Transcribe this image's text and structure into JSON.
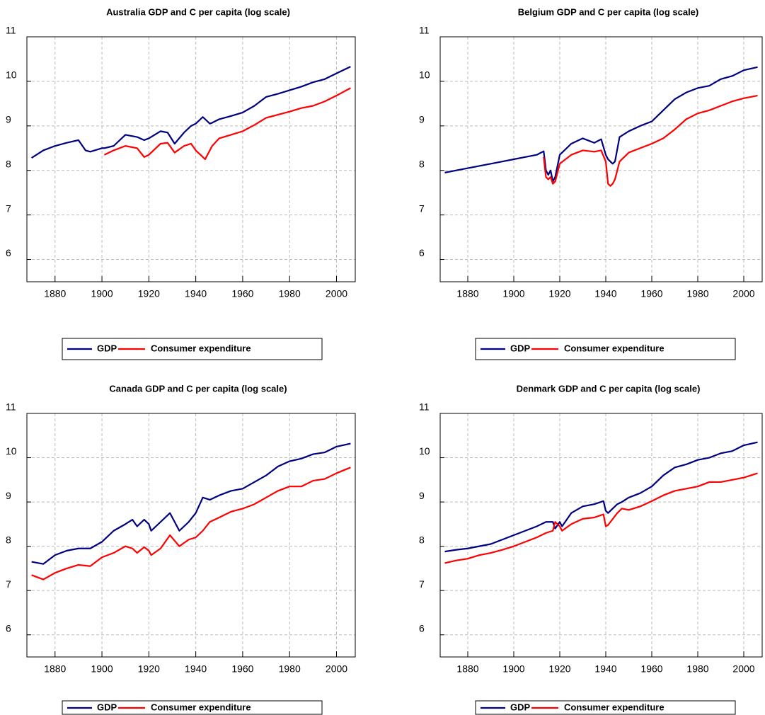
{
  "chart_data": [
    {
      "type": "line",
      "title": "Australia GDP and C per capita (log scale)",
      "x": [
        1870,
        1875,
        1880,
        1885,
        1890,
        1893,
        1895,
        1900,
        1901,
        1905,
        1910,
        1915,
        1918,
        1920,
        1925,
        1928,
        1931,
        1935,
        1938,
        1940,
        1943,
        1944,
        1946,
        1947,
        1950,
        1955,
        1960,
        1965,
        1970,
        1975,
        1980,
        1985,
        1990,
        1995,
        2000,
        2006
      ],
      "series": [
        {
          "name": "GDP",
          "color": "#000080",
          "values": [
            8.28,
            8.45,
            8.55,
            8.62,
            8.68,
            8.45,
            8.42,
            8.5,
            8.5,
            8.55,
            8.8,
            8.75,
            8.68,
            8.72,
            8.88,
            8.85,
            8.6,
            8.85,
            9.0,
            9.05,
            9.2,
            9.15,
            9.05,
            9.07,
            9.15,
            9.22,
            9.3,
            9.45,
            9.65,
            9.72,
            9.8,
            9.88,
            9.98,
            10.05,
            10.18,
            10.33
          ]
        },
        {
          "name": "Consumer expenditure",
          "color": "#ff0000",
          "values": [
            null,
            null,
            null,
            null,
            null,
            null,
            null,
            null,
            8.35,
            8.45,
            8.55,
            8.5,
            8.3,
            8.35,
            8.6,
            8.62,
            8.4,
            8.55,
            8.6,
            8.45,
            8.3,
            8.25,
            8.45,
            8.55,
            8.72,
            8.8,
            8.88,
            9.02,
            9.18,
            9.25,
            9.32,
            9.4,
            9.45,
            9.55,
            9.68,
            9.85
          ]
        }
      ],
      "xlim": [
        1868,
        2008
      ],
      "xticks": [
        1880,
        1900,
        1920,
        1940,
        1960,
        1980,
        2000
      ],
      "ylim": [
        5.5,
        11
      ],
      "yticks": [
        6,
        7,
        8,
        9,
        10,
        11
      ],
      "grid": true
    },
    {
      "type": "line",
      "title": "Belgium GDP and C per capita (log scale)",
      "x": [
        1870,
        1875,
        1880,
        1885,
        1890,
        1895,
        1900,
        1905,
        1910,
        1913,
        1914,
        1915,
        1916,
        1917,
        1918,
        1920,
        1925,
        1930,
        1935,
        1938,
        1940,
        1941,
        1942,
        1943,
        1944,
        1946,
        1950,
        1955,
        1960,
        1965,
        1970,
        1975,
        1980,
        1985,
        1990,
        1995,
        2000,
        2006
      ],
      "series": [
        {
          "name": "GDP",
          "color": "#000080",
          "values": [
            7.95,
            8.0,
            8.05,
            8.1,
            8.15,
            8.2,
            8.25,
            8.3,
            8.35,
            8.43,
            8.0,
            7.9,
            8.0,
            7.75,
            7.85,
            8.35,
            8.6,
            8.72,
            8.62,
            8.7,
            8.35,
            8.25,
            8.2,
            8.15,
            8.2,
            8.75,
            8.88,
            9.0,
            9.1,
            9.35,
            9.6,
            9.75,
            9.85,
            9.9,
            10.05,
            10.12,
            10.25,
            10.32
          ]
        },
        {
          "name": "Consumer expenditure",
          "color": "#ff0000",
          "values": [
            null,
            null,
            null,
            null,
            null,
            null,
            null,
            null,
            null,
            8.3,
            7.85,
            7.8,
            7.85,
            7.7,
            7.75,
            8.15,
            8.35,
            8.45,
            8.42,
            8.45,
            8.2,
            7.7,
            7.65,
            7.7,
            7.8,
            8.2,
            8.4,
            8.5,
            8.6,
            8.72,
            8.92,
            9.15,
            9.28,
            9.35,
            9.45,
            9.55,
            9.62,
            9.68
          ]
        }
      ],
      "xlim": [
        1868,
        2008
      ],
      "xticks": [
        1880,
        1900,
        1920,
        1940,
        1960,
        1980,
        2000
      ],
      "ylim": [
        5.5,
        11
      ],
      "yticks": [
        6,
        7,
        8,
        9,
        10,
        11
      ],
      "grid": true
    },
    {
      "type": "line",
      "title": "Canada GDP and C per capita (log scale)",
      "x": [
        1870,
        1875,
        1880,
        1885,
        1890,
        1895,
        1900,
        1905,
        1910,
        1913,
        1915,
        1918,
        1920,
        1921,
        1925,
        1929,
        1933,
        1937,
        1940,
        1943,
        1946,
        1950,
        1955,
        1960,
        1965,
        1970,
        1975,
        1980,
        1985,
        1990,
        1995,
        2000,
        2006
      ],
      "series": [
        {
          "name": "GDP",
          "color": "#000080",
          "values": [
            7.65,
            7.6,
            7.8,
            7.9,
            7.95,
            7.95,
            8.1,
            8.35,
            8.5,
            8.6,
            8.45,
            8.6,
            8.5,
            8.35,
            8.55,
            8.75,
            8.35,
            8.55,
            8.75,
            9.1,
            9.05,
            9.15,
            9.25,
            9.3,
            9.45,
            9.6,
            9.8,
            9.92,
            9.98,
            10.08,
            10.12,
            10.25,
            10.32
          ]
        },
        {
          "name": "Consumer expenditure",
          "color": "#ff0000",
          "values": [
            7.35,
            7.25,
            7.4,
            7.5,
            7.58,
            7.55,
            7.75,
            7.85,
            8.0,
            7.95,
            7.85,
            7.98,
            7.9,
            7.8,
            7.95,
            8.25,
            8.0,
            8.15,
            8.2,
            8.35,
            8.55,
            8.65,
            8.78,
            8.85,
            8.95,
            9.1,
            9.25,
            9.35,
            9.35,
            9.48,
            9.52,
            9.65,
            9.78
          ]
        }
      ],
      "xlim": [
        1868,
        2008
      ],
      "xticks": [
        1880,
        1900,
        1920,
        1940,
        1960,
        1980,
        2000
      ],
      "ylim": [
        5.5,
        11
      ],
      "yticks": [
        6,
        7,
        8,
        9,
        10,
        11
      ],
      "grid": true
    },
    {
      "type": "line",
      "title": "Denmark GDP and C per capita (log scale)",
      "x": [
        1870,
        1875,
        1880,
        1885,
        1890,
        1895,
        1900,
        1905,
        1910,
        1914,
        1917,
        1918,
        1920,
        1921,
        1925,
        1930,
        1935,
        1939,
        1940,
        1941,
        1945,
        1947,
        1950,
        1955,
        1960,
        1965,
        1970,
        1975,
        1980,
        1985,
        1990,
        1995,
        2000,
        2006
      ],
      "series": [
        {
          "name": "GDP",
          "color": "#000080",
          "values": [
            7.88,
            7.92,
            7.95,
            8.0,
            8.05,
            8.15,
            8.25,
            8.35,
            8.45,
            8.55,
            8.55,
            8.4,
            8.55,
            8.45,
            8.75,
            8.9,
            8.95,
            9.02,
            8.8,
            8.75,
            8.95,
            9.0,
            9.1,
            9.2,
            9.35,
            9.6,
            9.78,
            9.85,
            9.95,
            10.0,
            10.1,
            10.15,
            10.28,
            10.35
          ]
        },
        {
          "name": "Consumer expenditure",
          "color": "#ff0000",
          "values": [
            7.62,
            7.68,
            7.72,
            7.8,
            7.85,
            7.92,
            8.0,
            8.1,
            8.2,
            8.3,
            8.35,
            8.55,
            8.45,
            8.35,
            8.5,
            8.62,
            8.65,
            8.72,
            8.45,
            8.48,
            8.75,
            8.85,
            8.82,
            8.9,
            9.02,
            9.15,
            9.25,
            9.3,
            9.35,
            9.45,
            9.45,
            9.5,
            9.55,
            9.65
          ]
        }
      ],
      "xlim": [
        1868,
        2008
      ],
      "xticks": [
        1880,
        1900,
        1920,
        1940,
        1960,
        1980,
        2000
      ],
      "ylim": [
        5.5,
        11
      ],
      "yticks": [
        6,
        7,
        8,
        9,
        10,
        11
      ],
      "grid": true
    }
  ]
}
